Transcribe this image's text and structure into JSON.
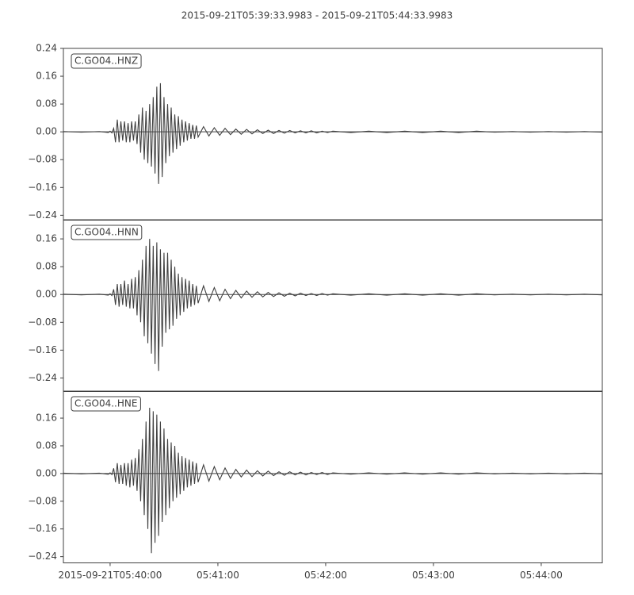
{
  "chart_data": {
    "type": "line",
    "title": "2015-09-21T05:39:33.9983  -  2015-09-21T05:44:33.9983",
    "xlim": [
      0,
      300
    ],
    "xticks": [
      {
        "value": 26.0017,
        "label": "2015-09-21T05:40:00"
      },
      {
        "value": 86.0017,
        "label": "05:41:00"
      },
      {
        "value": 146.0017,
        "label": "05:42:00"
      },
      {
        "value": 206.0017,
        "label": "05:43:00"
      },
      {
        "value": 266.0017,
        "label": "05:44:00"
      }
    ],
    "x": [
      0,
      10,
      20,
      25,
      26,
      27,
      28,
      29,
      30,
      31,
      32,
      33,
      34,
      35,
      36,
      37,
      38,
      39,
      40,
      41,
      42,
      43,
      44,
      45,
      46,
      47,
      48,
      49,
      50,
      51,
      52,
      53,
      54,
      55,
      56,
      57,
      58,
      59,
      60,
      61,
      62,
      63,
      64,
      65,
      66,
      67,
      68,
      69,
      70,
      71,
      72,
      73,
      74,
      75,
      78,
      81,
      84,
      87,
      90,
      93,
      96,
      99,
      102,
      105,
      108,
      111,
      114,
      117,
      120,
      123,
      126,
      129,
      132,
      135,
      138,
      141,
      144,
      147,
      150,
      160,
      170,
      180,
      190,
      200,
      210,
      220,
      230,
      240,
      250,
      260,
      270,
      280,
      290,
      300
    ],
    "series": [
      {
        "name": "C.GO04..HNZ",
        "color": "#404040",
        "ylim": [
          -0.254,
          0.24
        ],
        "yticks": [
          {
            "value": -0.24,
            "label": "−0.24"
          },
          {
            "value": -0.16,
            "label": "−0.16"
          },
          {
            "value": -0.08,
            "label": "−0.08"
          },
          {
            "value": 0,
            "label": "0.00"
          },
          {
            "value": 0.08,
            "label": "0.08"
          },
          {
            "value": 0.16,
            "label": "0.16"
          },
          {
            "value": 0.24,
            "label": "0.24"
          }
        ],
        "values": [
          0.001,
          -0.001,
          0.001,
          -0.002,
          0.002,
          -0.003,
          0.01,
          -0.03,
          0.035,
          -0.03,
          0.03,
          -0.025,
          0.03,
          -0.03,
          0.025,
          -0.03,
          0.03,
          -0.025,
          0.03,
          -0.035,
          0.05,
          -0.06,
          0.07,
          -0.08,
          0.06,
          -0.09,
          0.08,
          -0.1,
          0.1,
          -0.12,
          0.13,
          -0.15,
          0.14,
          -0.13,
          0.1,
          -0.09,
          0.08,
          -0.07,
          0.07,
          -0.06,
          0.05,
          -0.05,
          0.045,
          -0.04,
          0.035,
          -0.03,
          0.03,
          -0.025,
          0.025,
          -0.02,
          0.02,
          -0.02,
          0.018,
          -0.015,
          0.015,
          -0.012,
          0.012,
          -0.01,
          0.01,
          -0.008,
          0.008,
          -0.007,
          0.007,
          -0.006,
          0.006,
          -0.005,
          0.005,
          -0.005,
          0.004,
          -0.004,
          0.004,
          -0.003,
          0.003,
          -0.003,
          0.003,
          -0.003,
          0.002,
          -0.002,
          0.002,
          -0.002,
          0.002,
          -0.002,
          0.002,
          -0.002,
          0.002,
          -0.002,
          0.002,
          -0.001,
          0.001,
          -0.001,
          0.001,
          -0.001,
          0.001,
          -0.001
        ]
      },
      {
        "name": "C.GO04..HNN",
        "color": "#404040",
        "ylim": [
          -0.279,
          0.215
        ],
        "yticks": [
          {
            "value": -0.24,
            "label": "−0.24"
          },
          {
            "value": -0.16,
            "label": "−0.16"
          },
          {
            "value": -0.08,
            "label": "−0.08"
          },
          {
            "value": 0,
            "label": "0.00"
          },
          {
            "value": 0.08,
            "label": "0.08"
          },
          {
            "value": 0.16,
            "label": "0.16"
          }
        ],
        "values": [
          0.001,
          -0.001,
          0.001,
          -0.002,
          0.002,
          -0.003,
          0.015,
          -0.03,
          0.03,
          -0.035,
          0.03,
          -0.03,
          0.04,
          -0.035,
          0.03,
          -0.04,
          0.045,
          -0.04,
          0.05,
          -0.06,
          0.07,
          -0.08,
          0.1,
          -0.12,
          0.14,
          -0.14,
          0.16,
          -0.17,
          0.14,
          -0.2,
          0.15,
          -0.22,
          0.13,
          -0.15,
          0.12,
          -0.11,
          0.12,
          -0.1,
          0.1,
          -0.09,
          0.08,
          -0.07,
          0.06,
          -0.06,
          0.05,
          -0.05,
          0.045,
          -0.04,
          0.04,
          -0.035,
          0.03,
          -0.03,
          0.025,
          -0.025,
          0.025,
          -0.02,
          0.02,
          -0.018,
          0.015,
          -0.012,
          0.012,
          -0.01,
          0.01,
          -0.008,
          0.008,
          -0.007,
          0.006,
          -0.006,
          0.005,
          -0.005,
          0.004,
          -0.004,
          0.004,
          -0.003,
          0.003,
          -0.003,
          0.003,
          -0.002,
          0.002,
          -0.002,
          0.002,
          -0.002,
          0.002,
          -0.002,
          0.002,
          -0.002,
          0.002,
          -0.001,
          0.001,
          -0.001,
          0.001,
          -0.001,
          0.001,
          -0.001
        ]
      },
      {
        "name": "C.GO04..HNE",
        "color": "#404040",
        "ylim": [
          -0.258,
          0.238
        ],
        "yticks": [
          {
            "value": -0.24,
            "label": "−0.24"
          },
          {
            "value": -0.16,
            "label": "−0.16"
          },
          {
            "value": -0.08,
            "label": "−0.08"
          },
          {
            "value": 0,
            "label": "0.00"
          },
          {
            "value": 0.08,
            "label": "0.08"
          },
          {
            "value": 0.16,
            "label": "0.16"
          }
        ],
        "values": [
          0.001,
          -0.001,
          0.001,
          -0.002,
          0.002,
          -0.003,
          0.015,
          -0.025,
          0.03,
          -0.03,
          0.025,
          -0.03,
          0.03,
          -0.035,
          0.03,
          -0.04,
          0.04,
          -0.035,
          0.045,
          -0.05,
          0.07,
          -0.08,
          0.1,
          -0.12,
          0.15,
          -0.16,
          0.19,
          -0.23,
          0.18,
          -0.2,
          0.17,
          -0.18,
          0.15,
          -0.14,
          0.13,
          -0.12,
          0.1,
          -0.1,
          0.09,
          -0.08,
          0.08,
          -0.07,
          0.06,
          -0.06,
          0.05,
          -0.05,
          0.045,
          -0.04,
          0.04,
          -0.035,
          0.035,
          -0.03,
          0.03,
          -0.025,
          0.025,
          -0.022,
          0.02,
          -0.018,
          0.016,
          -0.014,
          0.012,
          -0.01,
          0.01,
          -0.009,
          0.008,
          -0.007,
          0.007,
          -0.006,
          0.005,
          -0.005,
          0.005,
          -0.004,
          0.004,
          -0.004,
          0.003,
          -0.003,
          0.003,
          -0.003,
          0.002,
          -0.002,
          0.002,
          -0.002,
          0.002,
          -0.002,
          0.002,
          -0.002,
          0.002,
          -0.001,
          0.001,
          -0.001,
          0.001,
          -0.001,
          0.001,
          -0.001
        ]
      }
    ]
  }
}
